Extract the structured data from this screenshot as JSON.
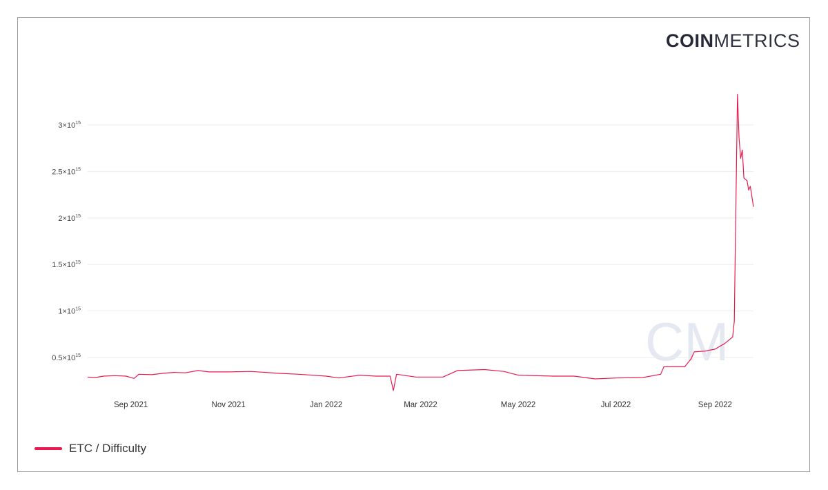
{
  "logo": {
    "bold": "COIN",
    "light": "METRICS"
  },
  "watermark": "CM",
  "chart_data": {
    "type": "line",
    "title": "",
    "xlabel": "",
    "ylabel": "",
    "x_range": [
      "2021-08-05",
      "2022-09-25"
    ],
    "ylim": [
      0,
      3400000000000000.0
    ],
    "grid": true,
    "legend_placement": "bottom-left",
    "y_ticks": [
      {
        "value": 500000000000000.0,
        "mantissa": "0.5",
        "label": "0.5×10",
        "exp": "15"
      },
      {
        "value": 1000000000000000.0,
        "mantissa": "1",
        "label": "1×10",
        "exp": "15"
      },
      {
        "value": 1500000000000000.0,
        "mantissa": "1.5",
        "label": "1.5×10",
        "exp": "15"
      },
      {
        "value": 2000000000000000.0,
        "mantissa": "2",
        "label": "2×10",
        "exp": "15"
      },
      {
        "value": 2500000000000000.0,
        "mantissa": "2.5",
        "label": "2.5×10",
        "exp": "15"
      },
      {
        "value": 3000000000000000.0,
        "mantissa": "3",
        "label": "3×10",
        "exp": "15"
      }
    ],
    "x_ticks": [
      {
        "date": "2021-09-01",
        "label": "Sep 2021"
      },
      {
        "date": "2021-11-01",
        "label": "Nov 2021"
      },
      {
        "date": "2022-01-01",
        "label": "Jan 2022"
      },
      {
        "date": "2022-03-01",
        "label": "Mar 2022"
      },
      {
        "date": "2022-05-01",
        "label": "May 2022"
      },
      {
        "date": "2022-07-01",
        "label": "Jul 2022"
      },
      {
        "date": "2022-09-01",
        "label": "Sep 2022"
      }
    ],
    "series": [
      {
        "name": "ETC / Difficulty",
        "color": "#e8194f",
        "points": [
          [
            "2021-08-05",
            290000000000000.0
          ],
          [
            "2021-08-10",
            285000000000000.0
          ],
          [
            "2021-08-15",
            300000000000000.0
          ],
          [
            "2021-08-22",
            305000000000000.0
          ],
          [
            "2021-08-29",
            300000000000000.0
          ],
          [
            "2021-09-03",
            275000000000000.0
          ],
          [
            "2021-09-06",
            320000000000000.0
          ],
          [
            "2021-09-14",
            315000000000000.0
          ],
          [
            "2021-09-21",
            330000000000000.0
          ],
          [
            "2021-09-28",
            340000000000000.0
          ],
          [
            "2021-10-05",
            335000000000000.0
          ],
          [
            "2021-10-13",
            360000000000000.0
          ],
          [
            "2021-10-20",
            345000000000000.0
          ],
          [
            "2021-11-01",
            345000000000000.0
          ],
          [
            "2021-11-15",
            350000000000000.0
          ],
          [
            "2021-12-02",
            330000000000000.0
          ],
          [
            "2021-12-15",
            320000000000000.0
          ],
          [
            "2022-01-01",
            300000000000000.0
          ],
          [
            "2022-01-09",
            280000000000000.0
          ],
          [
            "2022-01-22",
            310000000000000.0
          ],
          [
            "2022-02-01",
            300000000000000.0
          ],
          [
            "2022-02-10",
            300000000000000.0
          ],
          [
            "2022-02-12",
            145000000000000.0
          ],
          [
            "2022-02-14",
            320000000000000.0
          ],
          [
            "2022-02-26",
            290000000000000.0
          ],
          [
            "2022-03-15",
            290000000000000.0
          ],
          [
            "2022-03-24",
            360000000000000.0
          ],
          [
            "2022-04-10",
            370000000000000.0
          ],
          [
            "2022-04-22",
            350000000000000.0
          ],
          [
            "2022-05-01",
            310000000000000.0
          ],
          [
            "2022-05-23",
            300000000000000.0
          ],
          [
            "2022-06-05",
            300000000000000.0
          ],
          [
            "2022-06-18",
            270000000000000.0
          ],
          [
            "2022-07-01",
            280000000000000.0
          ],
          [
            "2022-07-18",
            285000000000000.0
          ],
          [
            "2022-07-29",
            320000000000000.0
          ],
          [
            "2022-07-31",
            400000000000000.0
          ],
          [
            "2022-08-13",
            400000000000000.0
          ],
          [
            "2022-08-17",
            485000000000000.0
          ],
          [
            "2022-08-19",
            560000000000000.0
          ],
          [
            "2022-08-26",
            570000000000000.0
          ],
          [
            "2022-09-01",
            590000000000000.0
          ],
          [
            "2022-09-07",
            650000000000000.0
          ],
          [
            "2022-09-12",
            720000000000000.0
          ],
          [
            "2022-09-13",
            890000000000000.0
          ],
          [
            "2022-09-14",
            2120000000000000.0
          ],
          [
            "2022-09-15",
            3330000000000000.0
          ],
          [
            "2022-09-16",
            2860000000000000.0
          ],
          [
            "2022-09-17",
            2640000000000000.0
          ],
          [
            "2022-09-18",
            2730000000000000.0
          ],
          [
            "2022-09-19",
            2430000000000000.0
          ],
          [
            "2022-09-21",
            2400000000000000.0
          ],
          [
            "2022-09-22",
            2300000000000000.0
          ],
          [
            "2022-09-23",
            2340000000000000.0
          ],
          [
            "2022-09-24",
            2230000000000000.0
          ],
          [
            "2022-09-25",
            2120000000000000.0
          ]
        ]
      }
    ]
  }
}
